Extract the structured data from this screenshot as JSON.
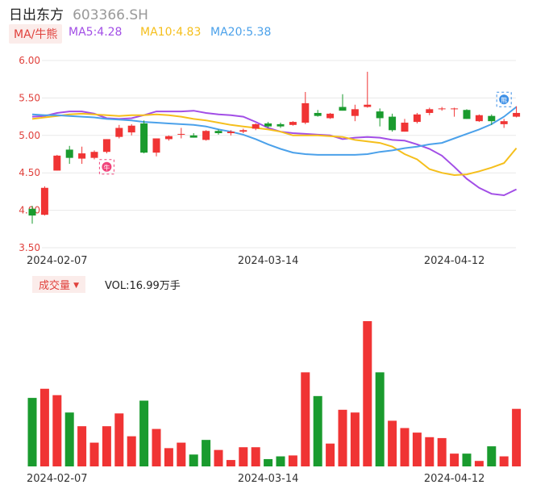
{
  "header": {
    "name": "日出东方",
    "code": "603366.SH"
  },
  "ma_bar": {
    "mode_label": "MA/牛熊",
    "items": [
      {
        "label": "MA5:4.28",
        "color": "#a24ee6"
      },
      {
        "label": "MA10:4.83",
        "color": "#f5bf1c"
      },
      {
        "label": "MA20:5.38",
        "color": "#4ba1ea"
      }
    ]
  },
  "volume_bar": {
    "button_label": "成交量",
    "text": "VOL:16.99万手"
  },
  "colors": {
    "up": "#f03434",
    "down": "#1a9b2e",
    "grid": "#e8e8e8"
  },
  "markers": {
    "bull": "牛",
    "bear": "熊"
  },
  "chart_data": [
    {
      "type": "candlestick",
      "ylim": [
        3.5,
        6.0
      ],
      "y_ticks": [
        "6.00",
        "5.50",
        "5.00",
        "4.50",
        "4.00",
        "3.50"
      ],
      "x_ticks": [
        {
          "index": 2,
          "label": "2024-02-07"
        },
        {
          "index": 19,
          "label": "2024-03-14"
        },
        {
          "index": 34,
          "label": "2024-04-12"
        }
      ],
      "candles": [
        {
          "o": 4.02,
          "h": 4.06,
          "l": 3.82,
          "c": 3.93
        },
        {
          "o": 3.94,
          "h": 4.32,
          "l": 3.93,
          "c": 4.3
        },
        {
          "o": 4.53,
          "h": 4.74,
          "l": 4.53,
          "c": 4.73
        },
        {
          "o": 4.81,
          "h": 4.86,
          "l": 4.62,
          "c": 4.7
        },
        {
          "o": 4.69,
          "h": 4.85,
          "l": 4.62,
          "c": 4.76
        },
        {
          "o": 4.7,
          "h": 4.8,
          "l": 4.68,
          "c": 4.78
        },
        {
          "o": 4.78,
          "h": 4.95,
          "l": 4.76,
          "c": 4.95
        },
        {
          "o": 4.98,
          "h": 5.14,
          "l": 4.96,
          "c": 5.1
        },
        {
          "o": 5.04,
          "h": 5.15,
          "l": 5.0,
          "c": 5.13
        },
        {
          "o": 5.16,
          "h": 5.2,
          "l": 4.76,
          "c": 4.77
        },
        {
          "o": 4.77,
          "h": 4.96,
          "l": 4.72,
          "c": 4.96
        },
        {
          "o": 4.95,
          "h": 5.0,
          "l": 4.93,
          "c": 4.99
        },
        {
          "o": 5.01,
          "h": 5.1,
          "l": 4.96,
          "c": 5.02
        },
        {
          "o": 5.0,
          "h": 5.03,
          "l": 4.97,
          "c": 4.97
        },
        {
          "o": 4.94,
          "h": 5.07,
          "l": 4.93,
          "c": 5.06
        },
        {
          "o": 5.06,
          "h": 5.08,
          "l": 5.01,
          "c": 5.03
        },
        {
          "o": 5.03,
          "h": 5.07,
          "l": 5.0,
          "c": 5.05
        },
        {
          "o": 5.05,
          "h": 5.09,
          "l": 5.03,
          "c": 5.07
        },
        {
          "o": 5.09,
          "h": 5.16,
          "l": 5.07,
          "c": 5.15
        },
        {
          "o": 5.16,
          "h": 5.18,
          "l": 5.1,
          "c": 5.12
        },
        {
          "o": 5.15,
          "h": 5.17,
          "l": 5.1,
          "c": 5.12
        },
        {
          "o": 5.14,
          "h": 5.19,
          "l": 5.13,
          "c": 5.18
        },
        {
          "o": 5.17,
          "h": 5.58,
          "l": 5.15,
          "c": 5.43
        },
        {
          "o": 5.3,
          "h": 5.34,
          "l": 5.25,
          "c": 5.26
        },
        {
          "o": 5.23,
          "h": 5.3,
          "l": 5.22,
          "c": 5.29
        },
        {
          "o": 5.38,
          "h": 5.55,
          "l": 5.33,
          "c": 5.33
        },
        {
          "o": 5.26,
          "h": 5.41,
          "l": 5.19,
          "c": 5.35
        },
        {
          "o": 5.38,
          "h": 5.85,
          "l": 5.37,
          "c": 5.41
        },
        {
          "o": 5.32,
          "h": 5.36,
          "l": 5.12,
          "c": 5.23
        },
        {
          "o": 5.25,
          "h": 5.29,
          "l": 5.05,
          "c": 5.07
        },
        {
          "o": 5.05,
          "h": 5.22,
          "l": 5.05,
          "c": 5.17
        },
        {
          "o": 5.18,
          "h": 5.3,
          "l": 5.16,
          "c": 5.28
        },
        {
          "o": 5.3,
          "h": 5.37,
          "l": 5.27,
          "c": 5.35
        },
        {
          "o": 5.35,
          "h": 5.38,
          "l": 5.33,
          "c": 5.36
        },
        {
          "o": 5.36,
          "h": 5.37,
          "l": 5.25,
          "c": 5.36
        },
        {
          "o": 5.34,
          "h": 5.35,
          "l": 5.22,
          "c": 5.22
        },
        {
          "o": 5.19,
          "h": 5.28,
          "l": 5.18,
          "c": 5.27
        },
        {
          "o": 5.26,
          "h": 5.28,
          "l": 5.14,
          "c": 5.19
        },
        {
          "o": 5.15,
          "h": 5.22,
          "l": 5.1,
          "c": 5.19
        },
        {
          "o": 5.25,
          "h": 5.39,
          "l": 5.24,
          "c": 5.3
        }
      ],
      "ma_series": [
        {
          "name": "MA5",
          "color": "#a24ee6",
          "values": [
            5.25,
            5.26,
            5.3,
            5.32,
            5.32,
            5.29,
            5.23,
            5.22,
            5.23,
            5.27,
            5.32,
            5.32,
            5.32,
            5.33,
            5.3,
            5.28,
            5.27,
            5.25,
            5.18,
            5.1,
            5.05,
            5.03,
            5.02,
            5.01,
            5.0,
            4.95,
            4.97,
            4.98,
            4.97,
            4.94,
            4.93,
            4.88,
            4.82,
            4.73,
            4.58,
            4.42,
            4.3,
            4.22,
            4.2,
            4.28
          ]
        },
        {
          "name": "MA10",
          "color": "#f5bf1c",
          "values": [
            5.22,
            5.24,
            5.26,
            5.28,
            5.29,
            5.28,
            5.27,
            5.26,
            5.27,
            5.27,
            5.28,
            5.27,
            5.25,
            5.22,
            5.2,
            5.17,
            5.14,
            5.12,
            5.1,
            5.08,
            5.05,
            5.0,
            5.0,
            5.0,
            4.99,
            4.98,
            4.94,
            4.92,
            4.9,
            4.85,
            4.75,
            4.68,
            4.55,
            4.5,
            4.47,
            4.48,
            4.52,
            4.57,
            4.63,
            4.83
          ]
        },
        {
          "name": "MA20",
          "color": "#4ba1ea",
          "values": [
            5.28,
            5.27,
            5.27,
            5.26,
            5.25,
            5.24,
            5.22,
            5.21,
            5.2,
            5.18,
            5.17,
            5.16,
            5.15,
            5.14,
            5.12,
            5.08,
            5.05,
            5.01,
            4.95,
            4.88,
            4.82,
            4.77,
            4.75,
            4.74,
            4.74,
            4.74,
            4.74,
            4.75,
            4.78,
            4.8,
            4.83,
            4.85,
            4.88,
            4.9,
            4.96,
            5.02,
            5.08,
            5.15,
            5.25,
            5.38
          ]
        }
      ]
    },
    {
      "type": "bar",
      "title": "成交量",
      "values": [
        7.5,
        8.5,
        7.8,
        5.9,
        4.4,
        2.6,
        4.4,
        5.8,
        3.3,
        7.2,
        4.1,
        2.0,
        2.6,
        1.3,
        2.9,
        1.8,
        0.7,
        2.1,
        2.1,
        0.8,
        1.1,
        1.2,
        10.3,
        7.7,
        2.5,
        6.2,
        5.9,
        15.9,
        10.3,
        5.0,
        4.2,
        3.7,
        3.2,
        3.1,
        1.4,
        1.4,
        0.6,
        2.2,
        1.1,
        6.3
      ],
      "colors": [
        "down",
        "up",
        "up",
        "down",
        "up",
        "up",
        "up",
        "up",
        "up",
        "down",
        "up",
        "up",
        "up",
        "down",
        "down",
        "up",
        "up",
        "up",
        "up",
        "down",
        "down",
        "up",
        "up",
        "down",
        "up",
        "up",
        "up",
        "up",
        "down",
        "up",
        "up",
        "up",
        "up",
        "up",
        "up",
        "down",
        "up",
        "down",
        "up",
        "up"
      ]
    }
  ]
}
